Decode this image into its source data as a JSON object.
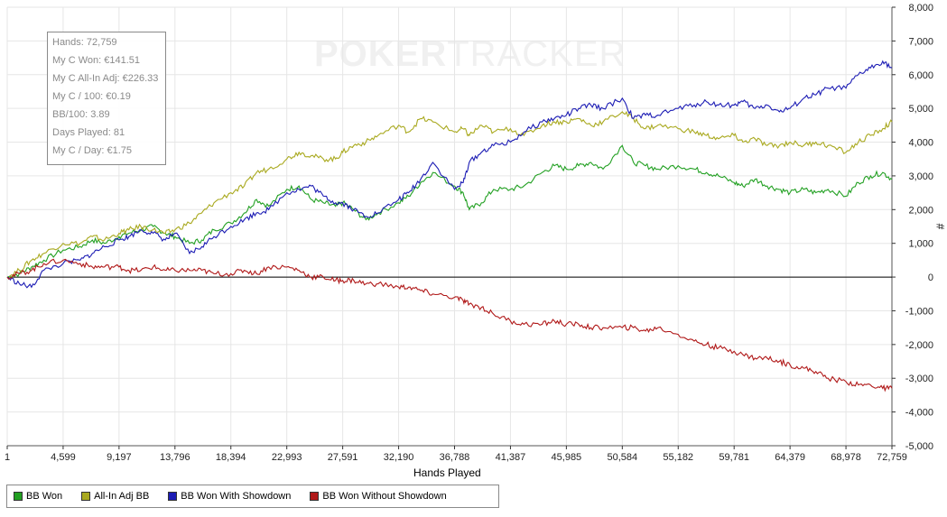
{
  "watermark": {
    "brand_bold": "POKER",
    "brand_light": "TRACKER"
  },
  "stats": [
    "Hands: 72,759",
    "My C Won: €141.51",
    "My C All-In Adj: €226.33",
    "My C / 100: €0.19",
    "BB/100: 3.89",
    "Days Played: 81",
    "My C / Day: €1.75"
  ],
  "legend": [
    {
      "label": "BB Won",
      "color": "#22a022"
    },
    {
      "label": "All-In Adj BB",
      "color": "#a9a91f"
    },
    {
      "label": "BB Won With Showdown",
      "color": "#1c1cb4"
    },
    {
      "label": "BB Won Without Showdown",
      "color": "#b01818"
    }
  ],
  "chart_data": {
    "type": "line",
    "xlabel": "Hands Played",
    "ylabel": "#",
    "xlim": [
      1,
      72759
    ],
    "ylim": [
      -5000,
      8000
    ],
    "x_ticks": [
      "1",
      "4,599",
      "9,197",
      "13,796",
      "18,394",
      "22,993",
      "27,591",
      "32,190",
      "36,788",
      "41,387",
      "45,985",
      "50,584",
      "55,182",
      "59,781",
      "64,379",
      "68,978",
      "72,759"
    ],
    "y_ticks": [
      "8,000",
      "7,000",
      "6,000",
      "5,000",
      "4,000",
      "3,000",
      "2,000",
      "1,000",
      "0",
      "-1,000",
      "-2,000",
      "-3,000",
      "-4,000",
      "-5,000"
    ],
    "y_tick_values": [
      8000,
      7000,
      6000,
      5000,
      4000,
      3000,
      2000,
      1000,
      0,
      -1000,
      -2000,
      -3000,
      -4000,
      -5000
    ],
    "x_tick_values": [
      1,
      4599,
      9197,
      13796,
      18394,
      22993,
      27591,
      32190,
      36788,
      41387,
      45985,
      50584,
      55182,
      59781,
      64379,
      68978,
      72759
    ],
    "series": [
      {
        "name": "BB Won",
        "color": "#22a022",
        "x": [
          1,
          1000,
          2000,
          3000,
          4599,
          6000,
          7000,
          8000,
          9197,
          10000,
          11000,
          12000,
          13000,
          13796,
          15000,
          16000,
          17000,
          18394,
          19500,
          20500,
          21500,
          22993,
          24000,
          25000,
          26000,
          27000,
          27591,
          28500,
          29500,
          30500,
          32190,
          33000,
          34000,
          35000,
          36788,
          37500,
          38000,
          39000,
          40000,
          41387,
          42500,
          44000,
          45000,
          45985,
          47000,
          48000,
          49000,
          50584,
          51500,
          52500,
          53500,
          55182,
          56500,
          57500,
          58500,
          59781,
          60500,
          61500,
          62500,
          63500,
          64379,
          65500,
          66500,
          67500,
          68978,
          70000,
          71000,
          72000,
          72759
        ],
        "y": [
          0,
          100,
          300,
          500,
          800,
          900,
          1100,
          1000,
          1200,
          1300,
          1400,
          1500,
          1300,
          1200,
          1000,
          1100,
          1400,
          1600,
          1900,
          2300,
          2100,
          2600,
          2700,
          2300,
          2200,
          2100,
          2200,
          2000,
          1700,
          1900,
          2200,
          2400,
          2800,
          3100,
          2700,
          2500,
          2000,
          2200,
          2600,
          2600,
          2700,
          3100,
          3300,
          3200,
          3300,
          3400,
          3200,
          3900,
          3400,
          3300,
          3200,
          3300,
          3200,
          3100,
          3000,
          2800,
          2700,
          2900,
          2700,
          2600,
          2500,
          2600,
          2500,
          2600,
          2400,
          2800,
          3000,
          3100,
          2900
        ]
      },
      {
        "name": "All-In Adj BB",
        "color": "#a9a91f",
        "x": [
          1,
          1000,
          2000,
          3000,
          4599,
          6000,
          7000,
          8000,
          9197,
          10000,
          11000,
          12000,
          13000,
          13796,
          15000,
          16000,
          17000,
          18394,
          19500,
          20500,
          21500,
          22993,
          24000,
          25000,
          26000,
          27000,
          27591,
          28500,
          29500,
          30500,
          32190,
          33000,
          34000,
          35000,
          36788,
          37500,
          38000,
          39000,
          40000,
          41387,
          42500,
          44000,
          45000,
          45985,
          47000,
          48000,
          49000,
          50584,
          51500,
          52500,
          53500,
          55182,
          56500,
          57500,
          58500,
          59781,
          60500,
          61500,
          62500,
          63500,
          64379,
          65500,
          66500,
          67500,
          68978,
          70000,
          71000,
          72000,
          72759
        ],
        "y": [
          0,
          200,
          500,
          700,
          1000,
          1000,
          1200,
          1100,
          1300,
          1400,
          1500,
          1400,
          1300,
          1400,
          1600,
          1900,
          2200,
          2500,
          2700,
          3100,
          3200,
          3500,
          3700,
          3600,
          3500,
          3500,
          3700,
          3900,
          4000,
          4200,
          4500,
          4300,
          4700,
          4600,
          4300,
          4400,
          4200,
          4500,
          4300,
          4400,
          4200,
          4500,
          4600,
          4600,
          4700,
          4500,
          4600,
          4900,
          4700,
          4400,
          4500,
          4400,
          4300,
          4200,
          4100,
          4200,
          4000,
          4100,
          3900,
          3900,
          4000,
          3900,
          4000,
          3900,
          3700,
          4000,
          4200,
          4400,
          4600
        ]
      },
      {
        "name": "BB Won With Showdown",
        "color": "#1c1cb4",
        "x": [
          1,
          1000,
          2000,
          3000,
          4599,
          6000,
          7000,
          8000,
          9197,
          10000,
          11000,
          12000,
          13000,
          13796,
          15000,
          16000,
          17000,
          18394,
          19500,
          20500,
          21500,
          22993,
          24000,
          25000,
          26000,
          27000,
          27591,
          28500,
          29500,
          30500,
          32190,
          33000,
          34000,
          35000,
          36788,
          37500,
          38000,
          39000,
          40000,
          41387,
          42500,
          44000,
          45000,
          45985,
          47000,
          48000,
          49000,
          50584,
          51500,
          52500,
          53500,
          55182,
          56500,
          57500,
          58500,
          59781,
          60500,
          61500,
          62500,
          63500,
          64379,
          65500,
          66500,
          67500,
          68978,
          70000,
          71000,
          72000,
          72759
        ],
        "y": [
          0,
          -200,
          -300,
          200,
          400,
          500,
          700,
          900,
          1100,
          1200,
          1400,
          1300,
          1100,
          1300,
          700,
          900,
          1200,
          1500,
          1700,
          1900,
          2000,
          2500,
          2600,
          2700,
          2400,
          2200,
          2200,
          2000,
          1800,
          1900,
          2300,
          2500,
          2900,
          3400,
          2600,
          2800,
          3400,
          3700,
          3900,
          4000,
          4300,
          4600,
          4700,
          4800,
          5000,
          5100,
          5000,
          5300,
          4700,
          4800,
          4800,
          5000,
          5100,
          5200,
          5100,
          5100,
          5200,
          5000,
          5100,
          4900,
          5000,
          5300,
          5400,
          5600,
          5600,
          6000,
          6200,
          6400,
          6200
        ]
      },
      {
        "name": "BB Won Without Showdown",
        "color": "#b01818",
        "x": [
          1,
          1000,
          2000,
          3000,
          4599,
          6000,
          7000,
          8000,
          9197,
          10000,
          11000,
          12000,
          13000,
          13796,
          15000,
          16000,
          17000,
          18394,
          19500,
          20500,
          21500,
          22993,
          24000,
          25000,
          26000,
          27000,
          27591,
          28500,
          29500,
          30500,
          32190,
          33000,
          34000,
          35000,
          36788,
          37500,
          38000,
          39000,
          40000,
          41387,
          42500,
          44000,
          45000,
          45985,
          47000,
          48000,
          49000,
          50584,
          51500,
          52500,
          53500,
          55182,
          56500,
          57500,
          58500,
          59781,
          60500,
          61500,
          62500,
          63500,
          64379,
          65500,
          66500,
          67500,
          68978,
          70000,
          71000,
          72000,
          72759
        ],
        "y": [
          0,
          100,
          200,
          400,
          500,
          400,
          300,
          300,
          300,
          200,
          200,
          300,
          200,
          200,
          200,
          200,
          100,
          100,
          200,
          100,
          300,
          300,
          200,
          0,
          0,
          -100,
          -100,
          -100,
          -200,
          -200,
          -300,
          -300,
          -400,
          -500,
          -600,
          -700,
          -800,
          -900,
          -1100,
          -1300,
          -1400,
          -1400,
          -1300,
          -1400,
          -1400,
          -1500,
          -1500,
          -1500,
          -1500,
          -1600,
          -1500,
          -1700,
          -1900,
          -2000,
          -2100,
          -2200,
          -2300,
          -2400,
          -2400,
          -2500,
          -2600,
          -2700,
          -2800,
          -3000,
          -3100,
          -3200,
          -3200,
          -3300,
          -3300
        ]
      }
    ]
  }
}
